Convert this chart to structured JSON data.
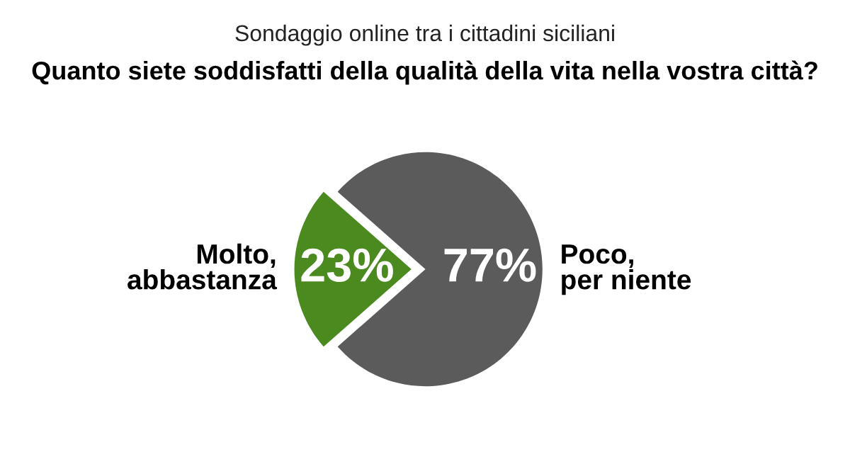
{
  "chart_data": {
    "type": "pie",
    "subtitle": "Sondaggio online tra i cittadini siciliani",
    "title": "Quanto siete soddisfatti della qualità della vita nella vostra città?",
    "categories": [
      "Molto,\nabbastanza",
      "Poco,\nper niente"
    ],
    "values": [
      23,
      77
    ],
    "colors": [
      "#4b8a1f",
      "#5b5b5b"
    ],
    "value_labels": [
      "23%",
      "77%"
    ],
    "legend": false
  }
}
